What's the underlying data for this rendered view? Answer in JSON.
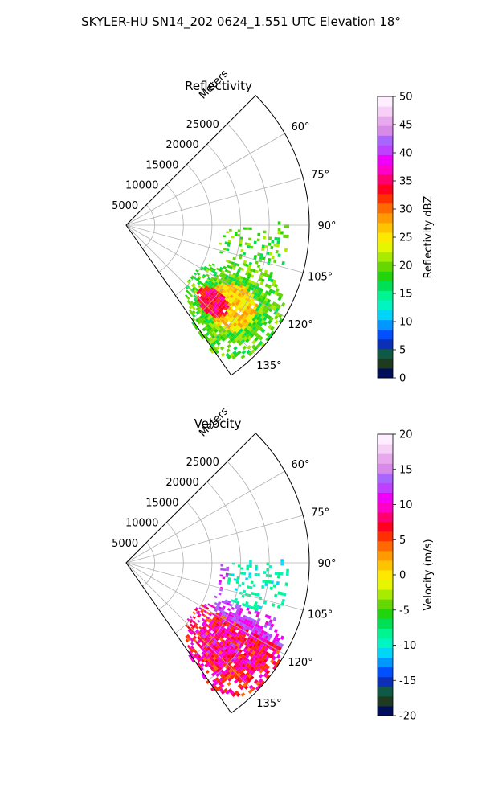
{
  "figure": {
    "title": "SKYLER-HU  SN14_202  0624_1.551 UTC Elevation 18°"
  },
  "colormap": [
    "#000e5c",
    "#1f3b1f",
    "#0f5a44",
    "#0b2fb5",
    "#0050ff",
    "#0097ff",
    "#00d6f7",
    "#00f5c0",
    "#00f590",
    "#00e054",
    "#22d40e",
    "#64d800",
    "#a8ea00",
    "#e6f500",
    "#ffe800",
    "#ffc400",
    "#ff9a00",
    "#ff6a00",
    "#ff3000",
    "#ff0020",
    "#ff0070",
    "#ff00c8",
    "#f000f8",
    "#c040ff",
    "#a866ff",
    "#d88ae8",
    "#e8a8ee",
    "#f6d0f6",
    "#ffeeff"
  ],
  "chart_data": [
    {
      "type": "heatmap",
      "subtype": "polar-ppi",
      "title": "Reflectivity",
      "range_label": "Meters",
      "range_ticks": [
        "5000",
        "10000",
        "15000",
        "20000",
        "25000"
      ],
      "range_values": [
        5000,
        10000,
        15000,
        20000,
        25000
      ],
      "range_max": 32000,
      "azimuth_range_deg": [
        45,
        145
      ],
      "azimuth_ticks": [
        "60°",
        "75°",
        "90°",
        "105°",
        "120°",
        "135°"
      ],
      "azimuth_values": [
        60,
        75,
        90,
        105,
        120,
        135
      ],
      "grid": true,
      "colorbar": {
        "label": "Reflectivity dBZ",
        "min": 0,
        "max": 50,
        "ticks": [
          "0",
          "5",
          "10",
          "15",
          "20",
          "25",
          "30",
          "35",
          "40",
          "45",
          "50"
        ]
      },
      "data_summary": {
        "echo_core_azimuth_deg": [
          120,
          135
        ],
        "echo_core_range_m": [
          15000,
          25000
        ],
        "core_value_dbz": [
          30,
          37
        ],
        "weak_echo_value_dbz": [
          15,
          22
        ]
      }
    },
    {
      "type": "heatmap",
      "subtype": "polar-ppi",
      "title": "Velocity",
      "range_label": "Meters",
      "range_ticks": [
        "5000",
        "10000",
        "15000",
        "20000",
        "25000"
      ],
      "range_values": [
        5000,
        10000,
        15000,
        20000,
        25000
      ],
      "range_max": 32000,
      "azimuth_range_deg": [
        45,
        145
      ],
      "azimuth_ticks": [
        "60°",
        "75°",
        "90°",
        "105°",
        "120°",
        "135°"
      ],
      "azimuth_values": [
        60,
        75,
        90,
        105,
        120,
        135
      ],
      "grid": true,
      "colorbar": {
        "label": "Velocity (m/s)",
        "min": -20,
        "max": 20,
        "ticks": [
          "-20",
          "-15",
          "-10",
          "-5",
          "0",
          "5",
          "10",
          "15",
          "20"
        ]
      },
      "data_summary": {
        "outbound_core_azimuth_deg": [
          110,
          135
        ],
        "outbound_core_value_ms": [
          10,
          15
        ],
        "inbound_region_azimuth_deg": [
          88,
          105
        ],
        "inbound_value_ms": [
          -12,
          -8
        ]
      }
    }
  ]
}
